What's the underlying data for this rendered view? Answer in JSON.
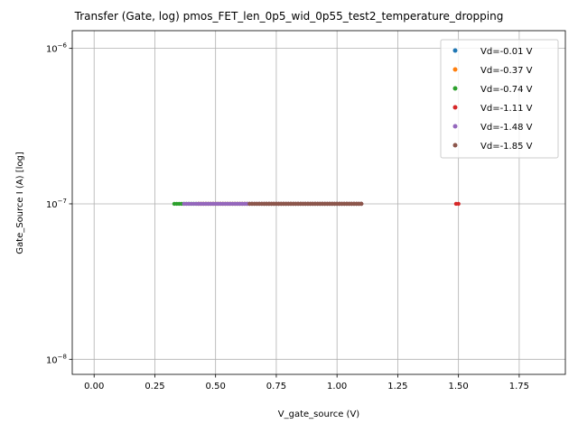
{
  "chart_data": {
    "type": "scatter",
    "title": "Transfer (Gate, log) pmos_FET_len_0p5_wid_0p55_test2_temperature_dropping",
    "xlabel": "V_gate_source (V)",
    "ylabel": "Gate_Source I (A) [log]",
    "xlim": [
      -0.09,
      1.94
    ],
    "ylim": [
      8e-09,
      1.3e-06
    ],
    "y_scale": "log",
    "grid": true,
    "legend_position": "top-right",
    "x_ticks": [
      {
        "value": 0.0,
        "label": "0.00"
      },
      {
        "value": 0.25,
        "label": "0.25"
      },
      {
        "value": 0.5,
        "label": "0.50"
      },
      {
        "value": 0.75,
        "label": "0.75"
      },
      {
        "value": 1.0,
        "label": "1.00"
      },
      {
        "value": 1.25,
        "label": "1.25"
      },
      {
        "value": 1.5,
        "label": "1.50"
      },
      {
        "value": 1.75,
        "label": "1.75"
      }
    ],
    "y_ticks": [
      {
        "value": 1e-08,
        "base": "10",
        "exp": "−8"
      },
      {
        "value": 1e-07,
        "base": "10",
        "exp": "−7"
      },
      {
        "value": 1e-06,
        "base": "10",
        "exp": "−6"
      }
    ],
    "series": [
      {
        "name": "Vd=-0.01 V",
        "color": "#1f77b4",
        "x_range": [
          0.7,
          1.1
        ],
        "step": 0.01,
        "y": 1e-07
      },
      {
        "name": "Vd=-0.37 V",
        "color": "#ff7f0e",
        "x_range": [
          0.7,
          1.1
        ],
        "step": 0.01,
        "y": 1e-07
      },
      {
        "name": "Vd=-0.74 V",
        "color": "#2ca02c",
        "x_range": [
          0.33,
          1.1
        ],
        "step": 0.01,
        "y": 1e-07
      },
      {
        "name": "Vd=-1.11 V",
        "color": "#d62728",
        "x_range": [
          0.43,
          1.1
        ],
        "step": 0.01,
        "y": 1e-07,
        "extra_x": [
          1.49,
          1.5
        ]
      },
      {
        "name": "Vd=-1.48 V",
        "color": "#9467bd",
        "x_range": [
          0.37,
          1.1
        ],
        "step": 0.01,
        "y": 1e-07
      },
      {
        "name": "Vd=-1.85 V",
        "color": "#8c564b",
        "x_range": [
          0.64,
          1.1
        ],
        "step": 0.01,
        "y": 1e-07
      }
    ]
  }
}
